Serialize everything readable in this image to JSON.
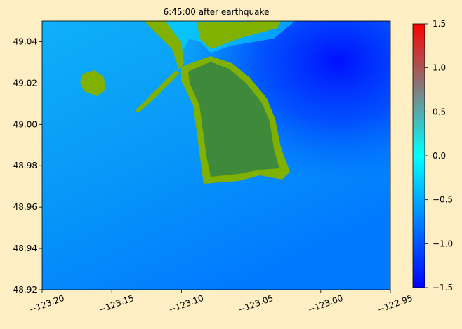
{
  "chart_data": {
    "type": "heatmap",
    "title": "6:45:00 after earthquake",
    "xlim": [
      -123.2,
      -122.95
    ],
    "xticks": [
      {
        "value": -123.2,
        "label": "−123.20"
      },
      {
        "value": -123.15,
        "label": "−123.15"
      },
      {
        "value": -123.1,
        "label": "−123.10"
      },
      {
        "value": -123.05,
        "label": "−123.05"
      },
      {
        "value": -123.0,
        "label": "−123.00"
      },
      {
        "value": -122.95,
        "label": "−122.95"
      }
    ],
    "ylim": [
      48.92,
      49.05
    ],
    "yticks": [
      48.92,
      48.94,
      48.96,
      48.98,
      {
        "value": 49.0,
        "label": "49.00"
      },
      49.02,
      49.04
    ],
    "clim": [
      -1.5,
      1.5
    ],
    "cticks": [
      {
        "value": -1.5,
        "label": "−1.5"
      },
      {
        "value": -1.0,
        "label": "−1.0"
      },
      {
        "value": -0.5,
        "label": "−0.5"
      },
      {
        "value": 0.0,
        "label": "0.0"
      },
      0.5,
      {
        "value": 1.0,
        "label": "1.0"
      },
      1.5
    ]
  }
}
